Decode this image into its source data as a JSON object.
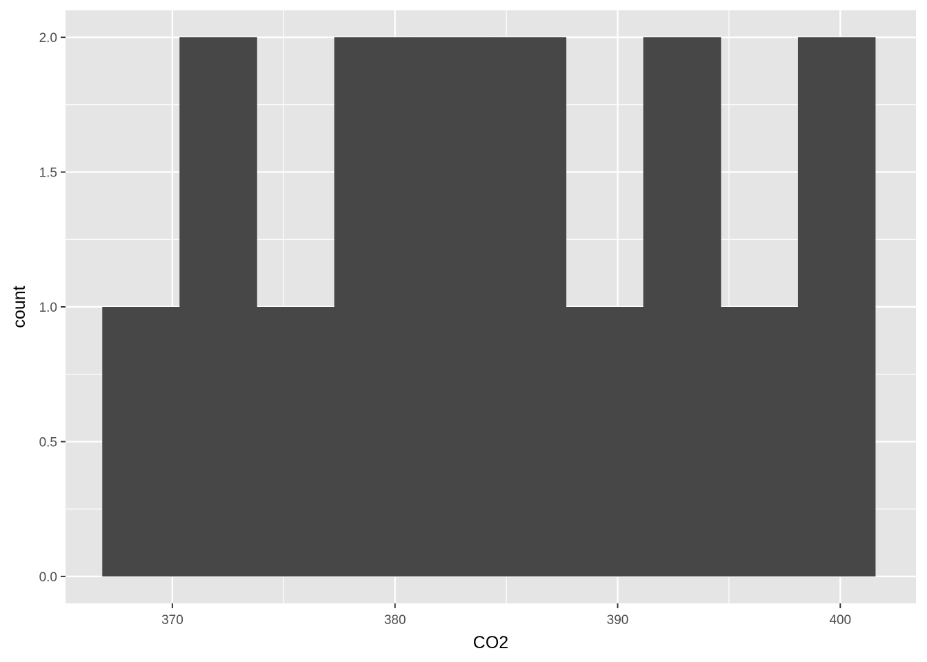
{
  "chart_data": {
    "type": "bar",
    "subtype": "histogram",
    "xlabel": "CO2",
    "ylabel": "count",
    "xlim": [
      365.2,
      403.4
    ],
    "ylim": [
      -0.1,
      2.1
    ],
    "x_ticks": [
      370,
      380,
      390,
      400
    ],
    "x_tick_labels": [
      "370",
      "380",
      "390",
      "400"
    ],
    "y_ticks": [
      0.0,
      0.5,
      1.0,
      1.5,
      2.0
    ],
    "y_tick_labels": [
      "0.0",
      "0.5",
      "1.0",
      "1.5",
      "2.0"
    ],
    "bin_width": 3.47,
    "bins": [
      {
        "start": 366.85,
        "end": 370.32,
        "count": 1
      },
      {
        "start": 370.32,
        "end": 373.79,
        "count": 2
      },
      {
        "start": 373.79,
        "end": 377.27,
        "count": 1
      },
      {
        "start": 377.27,
        "end": 380.74,
        "count": 2
      },
      {
        "start": 380.74,
        "end": 384.21,
        "count": 2
      },
      {
        "start": 384.21,
        "end": 387.68,
        "count": 2
      },
      {
        "start": 387.68,
        "end": 391.15,
        "count": 1
      },
      {
        "start": 391.15,
        "end": 394.63,
        "count": 2
      },
      {
        "start": 394.63,
        "end": 398.1,
        "count": 1
      },
      {
        "start": 398.1,
        "end": 401.57,
        "count": 2
      }
    ],
    "grid": true,
    "colors": {
      "panel_background": "#e5e5e5",
      "grid_line": "#ffffff",
      "bar_fill": "#474747",
      "tick_text": "#4d4d4d",
      "tick_mark": "#333333",
      "axis_title": "#000000"
    }
  }
}
